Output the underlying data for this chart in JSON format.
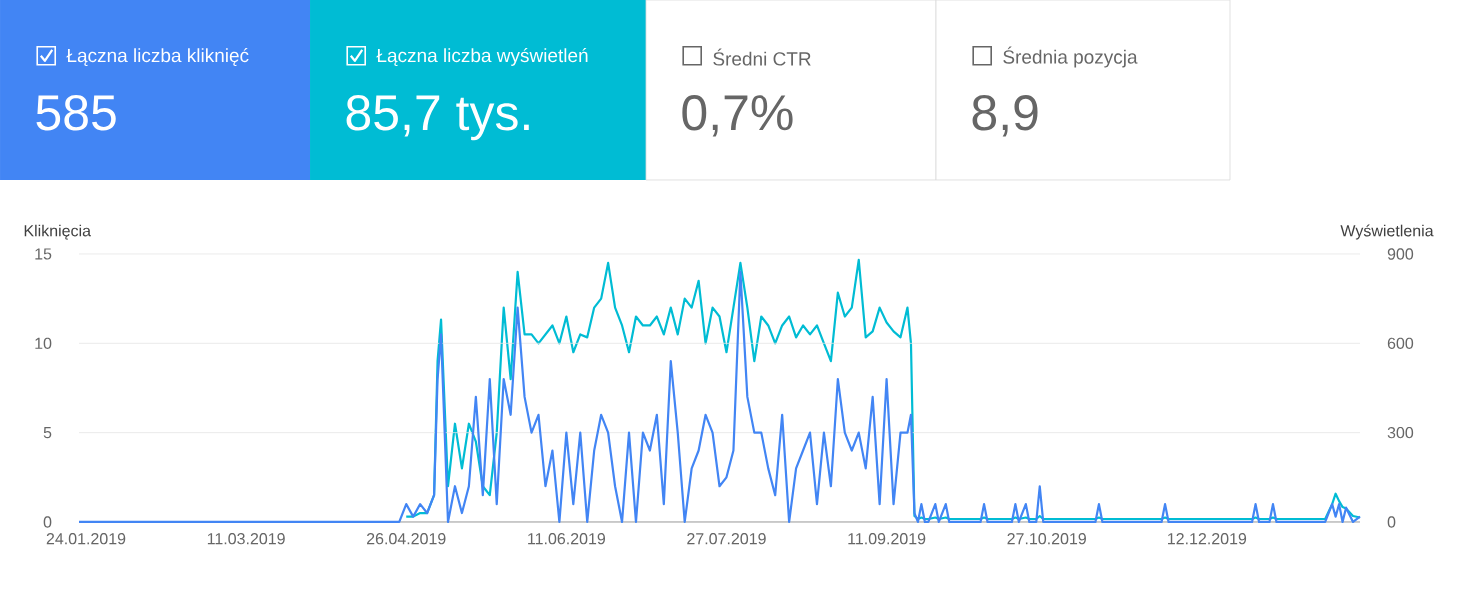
{
  "chart_data": [
    {
      "type": "other",
      "annotations": [
        "Łączna liczba kliknięć",
        "585",
        "Łączna liczba wyświetleń",
        "85,7 tys.",
        "Średni CTR",
        "0,7%",
        "Średnia pozycja",
        "8,9"
      ]
    },
    {
      "type": "line",
      "ylabel": "Kliknięcia",
      "y2label": "Wyświetlenia",
      "grid": "y",
      "xlim": [
        "2019-01-22",
        "2020-01-25"
      ],
      "xticks": [
        {
          "value": "2019-01-24",
          "label": "24.01.2019"
        },
        {
          "value": "2019-03-11",
          "label": "11.03.2019"
        },
        {
          "value": "2019-04-26",
          "label": "26.04.2019"
        },
        {
          "value": "2019-06-11",
          "label": "11.06.2019"
        },
        {
          "value": "2019-07-27",
          "label": "27.07.2019"
        },
        {
          "value": "2019-09-11",
          "label": "11.09.2019"
        },
        {
          "value": "2019-10-27",
          "label": "27.10.2019"
        },
        {
          "value": "2019-12-12",
          "label": "12.12.2019"
        }
      ],
      "ylim": [
        0,
        15
      ],
      "yticks": [
        0,
        5,
        10,
        15
      ],
      "y2lim": [
        0,
        900
      ],
      "y2ticks": [
        0,
        300,
        600,
        900
      ],
      "x": [
        "2019-01-22",
        "2019-02-13",
        "2019-03-05",
        "2019-03-25",
        "2019-04-14",
        "2019-04-22",
        "2019-04-24",
        "2019-04-26",
        "2019-04-28",
        "2019-04-30",
        "2019-05-02",
        "2019-05-04",
        "2019-05-05",
        "2019-05-06",
        "2019-05-08",
        "2019-05-10",
        "2019-05-12",
        "2019-05-14",
        "2019-05-16",
        "2019-05-18",
        "2019-05-20",
        "2019-05-22",
        "2019-05-24",
        "2019-05-26",
        "2019-05-28",
        "2019-05-30",
        "2019-06-01",
        "2019-06-03",
        "2019-06-05",
        "2019-06-07",
        "2019-06-09",
        "2019-06-11",
        "2019-06-13",
        "2019-06-15",
        "2019-06-17",
        "2019-06-19",
        "2019-06-21",
        "2019-06-23",
        "2019-06-25",
        "2019-06-27",
        "2019-06-29",
        "2019-07-01",
        "2019-07-03",
        "2019-07-05",
        "2019-07-07",
        "2019-07-09",
        "2019-07-11",
        "2019-07-13",
        "2019-07-15",
        "2019-07-17",
        "2019-07-19",
        "2019-07-21",
        "2019-07-23",
        "2019-07-25",
        "2019-07-27",
        "2019-07-29",
        "2019-07-31",
        "2019-08-02",
        "2019-08-04",
        "2019-08-06",
        "2019-08-08",
        "2019-08-10",
        "2019-08-12",
        "2019-08-14",
        "2019-08-16",
        "2019-08-18",
        "2019-08-20",
        "2019-08-22",
        "2019-08-24",
        "2019-08-26",
        "2019-08-28",
        "2019-08-30",
        "2019-09-01",
        "2019-09-03",
        "2019-09-05",
        "2019-09-07",
        "2019-09-09",
        "2019-09-11",
        "2019-09-13",
        "2019-09-15",
        "2019-09-17",
        "2019-09-18",
        "2019-09-19",
        "2019-09-20",
        "2019-09-21",
        "2019-09-22",
        "2019-09-23",
        "2019-09-25",
        "2019-09-26",
        "2019-09-28",
        "2019-09-29",
        "2019-10-08",
        "2019-10-09",
        "2019-10-10",
        "2019-10-17",
        "2019-10-18",
        "2019-10-19",
        "2019-10-21",
        "2019-10-22",
        "2019-10-24",
        "2019-10-25",
        "2019-10-26",
        "2019-11-10",
        "2019-11-11",
        "2019-11-12",
        "2019-11-29",
        "2019-11-30",
        "2019-12-01",
        "2019-12-25",
        "2019-12-26",
        "2019-12-27",
        "2019-12-30",
        "2019-12-31",
        "2020-01-01",
        "2020-01-15",
        "2020-01-17",
        "2020-01-18",
        "2020-01-19",
        "2020-01-20",
        "2020-01-21",
        "2020-01-23",
        "2020-01-25"
      ],
      "series": [
        {
          "color": "#4285f4",
          "values": [
            0,
            0,
            0,
            0,
            0,
            0,
            0,
            1,
            0.3,
            1,
            0.5,
            1.5,
            8,
            10.5,
            0,
            2,
            0.5,
            2,
            7,
            1.5,
            8,
            1,
            8,
            6,
            12,
            7,
            5,
            6,
            2,
            4,
            0,
            5,
            1,
            5,
            0,
            4,
            6,
            5,
            2,
            0,
            5,
            0,
            5,
            4,
            6,
            1,
            9,
            5,
            0,
            3,
            4,
            6,
            5,
            2,
            2.5,
            4,
            14,
            7,
            5,
            5,
            3,
            1.5,
            6,
            0,
            3,
            4,
            5,
            1,
            5,
            2,
            8,
            5,
            4,
            5,
            3,
            7,
            1,
            8,
            1,
            5,
            5,
            6,
            0.5,
            0,
            1,
            0,
            0,
            1,
            0,
            1,
            0,
            0,
            1,
            0,
            0,
            1,
            0,
            1,
            0,
            0,
            2,
            0,
            0,
            1,
            0,
            0,
            1,
            0,
            0,
            1,
            0,
            0,
            1,
            0,
            0,
            1,
            0.3,
            1,
            0,
            0.8,
            0,
            0.3
          ]
        },
        {
          "color": "#00bcd4",
          "axis": "y2",
          "values": [
            null,
            null,
            null,
            null,
            null,
            null,
            null,
            18,
            18,
            30,
            30,
            90,
            540,
            680,
            120,
            330,
            180,
            330,
            270,
            120,
            90,
            300,
            720,
            480,
            840,
            630,
            630,
            600,
            630,
            660,
            600,
            690,
            570,
            630,
            620,
            720,
            750,
            870,
            720,
            660,
            570,
            690,
            660,
            660,
            690,
            630,
            720,
            630,
            750,
            720,
            810,
            600,
            720,
            690,
            570,
            720,
            870,
            720,
            540,
            690,
            660,
            600,
            660,
            690,
            620,
            660,
            630,
            660,
            600,
            540,
            770,
            690,
            720,
            880,
            620,
            640,
            720,
            670,
            640,
            620,
            720,
            600,
            20,
            10,
            15,
            10,
            10,
            15,
            10,
            15,
            10,
            10,
            15,
            10,
            10,
            15,
            10,
            15,
            10,
            10,
            20,
            10,
            10,
            15,
            10,
            10,
            15,
            10,
            10,
            15,
            10,
            10,
            15,
            10,
            10,
            60,
            95,
            70,
            50,
            45,
            20,
            15
          ]
        }
      ]
    }
  ]
}
